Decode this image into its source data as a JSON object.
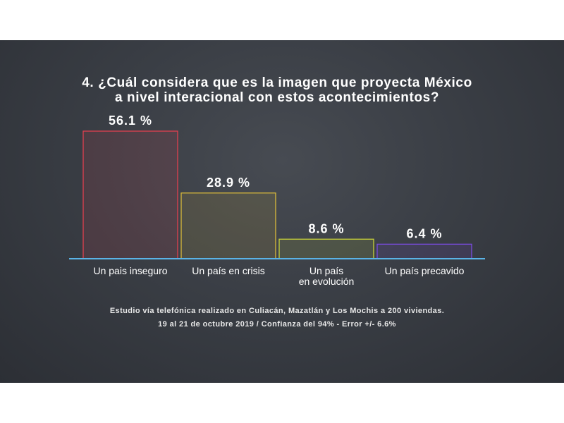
{
  "chart_data": {
    "type": "bar",
    "title_lines": [
      "4. ¿Cuál considera que es la imagen que proyecta México",
      "a nivel interacional con estos acontecimientos?"
    ],
    "categories": [
      [
        "Un pais inseguro"
      ],
      [
        "Un país en crisis"
      ],
      [
        "Un país",
        "en evolución"
      ],
      [
        "Un país precavido"
      ]
    ],
    "values": [
      56.1,
      28.9,
      8.6,
      6.4
    ],
    "value_labels": [
      "56.1 %",
      "28.9 %",
      "8.6 %",
      "6.4 %"
    ],
    "bar_colors": [
      "#e0404f",
      "#d9b93b",
      "#c9d23a",
      "#7a4be0"
    ],
    "baseline_color": "#5ab3e6",
    "ylim": [
      0,
      56.1
    ],
    "grid": false
  },
  "footnote": {
    "line1": "Estudio vía telefónica realizado en Culiacán, Mazatlán y Los Mochis a 200 viviendas.",
    "line2": "19 al 21 de octubre 2019  /  Confianza del 94%  -  Error +/- 6.6%"
  }
}
